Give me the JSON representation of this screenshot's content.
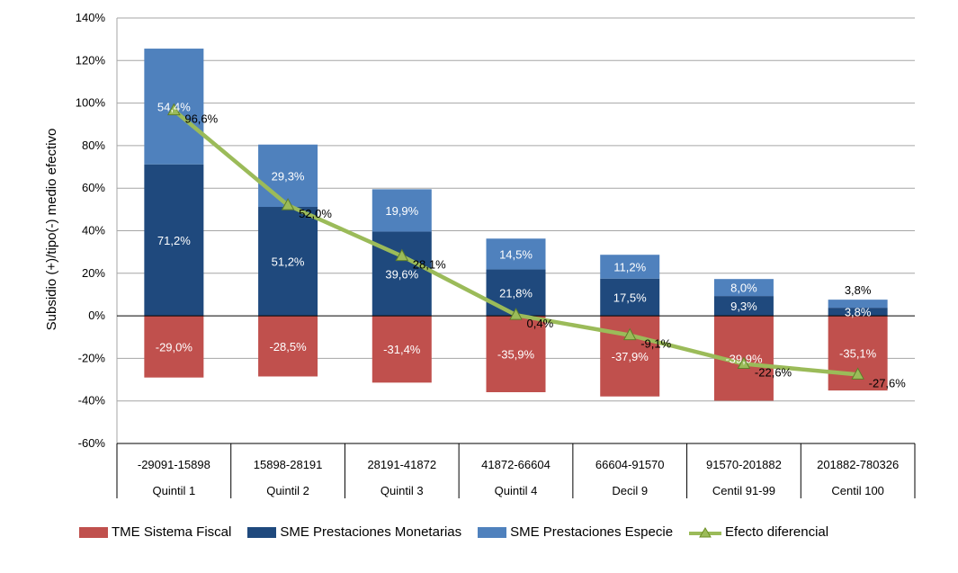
{
  "chart_data": {
    "type": "bar",
    "stacked": true,
    "ylabel": "Subsidio (+)/tipo(-) medio efectivo",
    "ylim": [
      -60,
      140
    ],
    "yticks": [
      "140%",
      "120%",
      "100%",
      "80%",
      "60%",
      "40%",
      "20%",
      "0%",
      "-20%",
      "-40%",
      "-60%"
    ],
    "categories": [
      {
        "range": "-29091-15898",
        "group": "Quintil 1"
      },
      {
        "range": "15898-28191",
        "group": "Quintil 2"
      },
      {
        "range": "28191-41872",
        "group": "Quintil 3"
      },
      {
        "range": "41872-66604",
        "group": "Quintil 4"
      },
      {
        "range": "66604-91570",
        "group": "Decil 9"
      },
      {
        "range": "91570-201882",
        "group": "Centil 91-99"
      },
      {
        "range": "201882-780326",
        "group": "Centil 100"
      }
    ],
    "series": [
      {
        "name": "TME Sistema Fiscal",
        "color": "#c0504d",
        "values": [
          -29.0,
          -28.5,
          -31.4,
          -35.9,
          -37.9,
          -39.9,
          -35.1
        ],
        "labels": [
          "-29,0%",
          "-28,5%",
          "-31,4%",
          "-35,9%",
          "-37,9%",
          "-39,9%",
          "-35,1%"
        ]
      },
      {
        "name": "SME Prestaciones Monetarias",
        "color": "#1f497d",
        "values": [
          71.2,
          51.2,
          39.6,
          21.8,
          17.5,
          9.3,
          3.8
        ],
        "labels": [
          "71,2%",
          "51,2%",
          "39,6%",
          "21,8%",
          "17,5%",
          "9,3%",
          "3,8%"
        ]
      },
      {
        "name": "SME Prestaciones Especie",
        "color": "#4f81bd",
        "values": [
          54.4,
          29.3,
          19.9,
          14.5,
          11.2,
          8.0,
          3.8
        ],
        "labels": [
          "54,4%",
          "29,3%",
          "19,9%",
          "14,5%",
          "11,2%",
          "8,0%",
          "3,8%"
        ]
      },
      {
        "name": "Efecto diferencial",
        "type": "line",
        "color": "#9bbb59",
        "values": [
          96.6,
          52.0,
          28.1,
          0.4,
          -9.1,
          -22.6,
          -27.6
        ],
        "labels": [
          "96,6%",
          "52,0%",
          "28,1%",
          "0,4%",
          "-9,1%",
          "-22,6%",
          "-27,6%"
        ]
      }
    ],
    "grid": true,
    "legend_position": "bottom"
  }
}
